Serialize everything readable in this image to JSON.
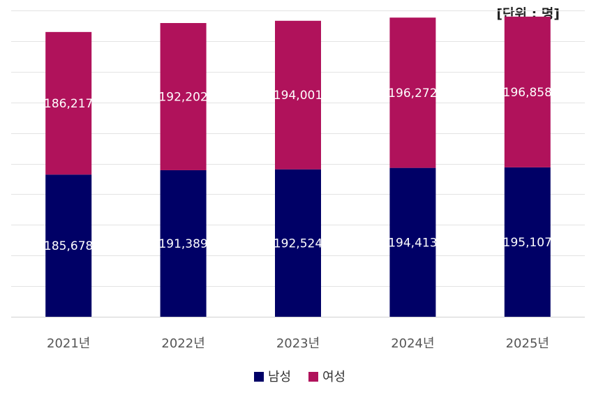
{
  "chart_data": {
    "type": "bar",
    "stacked": true,
    "unit_label": "[단위 : 명]",
    "categories": [
      "2021년",
      "2022년",
      "2023년",
      "2024년",
      "2025년"
    ],
    "series": [
      {
        "name": "남성",
        "color": "#000066",
        "values": [
          185678,
          191389,
          192524,
          194413,
          195107
        ]
      },
      {
        "name": "여성",
        "color": "#b0125b",
        "values": [
          186217,
          192202,
          194001,
          196272,
          196858
        ]
      }
    ],
    "ylim": [
      0,
      400000
    ],
    "grid": true,
    "legend_position": "bottom"
  }
}
